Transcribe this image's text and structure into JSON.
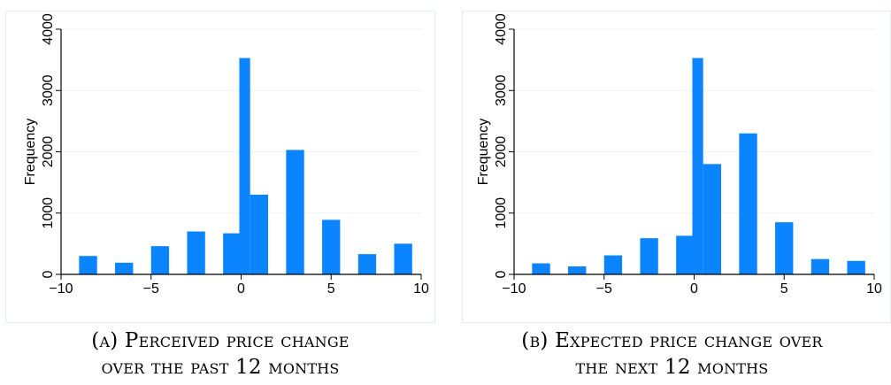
{
  "colors": {
    "bar": "#0a84ff",
    "grid": "#eef3f7",
    "axis": "#000000"
  },
  "chart_data": [
    {
      "type": "bar",
      "ylabel": "Frequency",
      "xlim": [
        -10,
        10
      ],
      "ylim": [
        0,
        4000
      ],
      "xticks": [
        -10,
        -5,
        0,
        5,
        10
      ],
      "xtick_labels": [
        "−10",
        "−5",
        "0",
        "5",
        "10"
      ],
      "yticks": [
        0,
        1000,
        2000,
        3000,
        4000
      ],
      "ytick_labels": [
        "0",
        "1000",
        "2000",
        "3000",
        "4000"
      ],
      "grid": true,
      "bars": [
        {
          "x0": -9.0,
          "x1": -8.0,
          "value": 300
        },
        {
          "x0": -7.0,
          "x1": -6.0,
          "value": 190
        },
        {
          "x0": -5.0,
          "x1": -4.0,
          "value": 460
        },
        {
          "x0": -3.0,
          "x1": -2.0,
          "value": 700
        },
        {
          "x0": -1.0,
          "x1": 0.0,
          "value": 670
        },
        {
          "x0": -0.1,
          "x1": 0.5,
          "value": 3530
        },
        {
          "x0": 0.5,
          "x1": 1.5,
          "value": 1300
        },
        {
          "x0": 2.5,
          "x1": 3.5,
          "value": 2030
        },
        {
          "x0": 4.5,
          "x1": 5.5,
          "value": 890
        },
        {
          "x0": 6.5,
          "x1": 7.5,
          "value": 330
        },
        {
          "x0": 8.5,
          "x1": 9.5,
          "value": 500
        }
      ]
    },
    {
      "type": "bar",
      "ylabel": "Frequency",
      "xlim": [
        -10,
        10
      ],
      "ylim": [
        0,
        4000
      ],
      "xticks": [
        -10,
        -5,
        0,
        5,
        10
      ],
      "xtick_labels": [
        "−10",
        "−5",
        "0",
        "5",
        "10"
      ],
      "yticks": [
        0,
        1000,
        2000,
        3000,
        4000
      ],
      "ytick_labels": [
        "0",
        "1000",
        "2000",
        "3000",
        "4000"
      ],
      "grid": true,
      "bars": [
        {
          "x0": -9.0,
          "x1": -8.0,
          "value": 180
        },
        {
          "x0": -7.0,
          "x1": -6.0,
          "value": 130
        },
        {
          "x0": -5.0,
          "x1": -4.0,
          "value": 310
        },
        {
          "x0": -3.0,
          "x1": -2.0,
          "value": 590
        },
        {
          "x0": -1.0,
          "x1": 0.0,
          "value": 630
        },
        {
          "x0": -0.1,
          "x1": 0.5,
          "value": 3530
        },
        {
          "x0": 0.5,
          "x1": 1.5,
          "value": 1800
        },
        {
          "x0": 2.5,
          "x1": 3.5,
          "value": 2300
        },
        {
          "x0": 4.5,
          "x1": 5.5,
          "value": 850
        },
        {
          "x0": 6.5,
          "x1": 7.5,
          "value": 250
        },
        {
          "x0": 8.5,
          "x1": 9.5,
          "value": 220
        }
      ]
    }
  ],
  "captions": [
    {
      "line1": "(a) Perceived price change",
      "line2": "over the past 12 months"
    },
    {
      "line1": "(b) Expected price change over",
      "line2": "the next 12 months"
    }
  ]
}
